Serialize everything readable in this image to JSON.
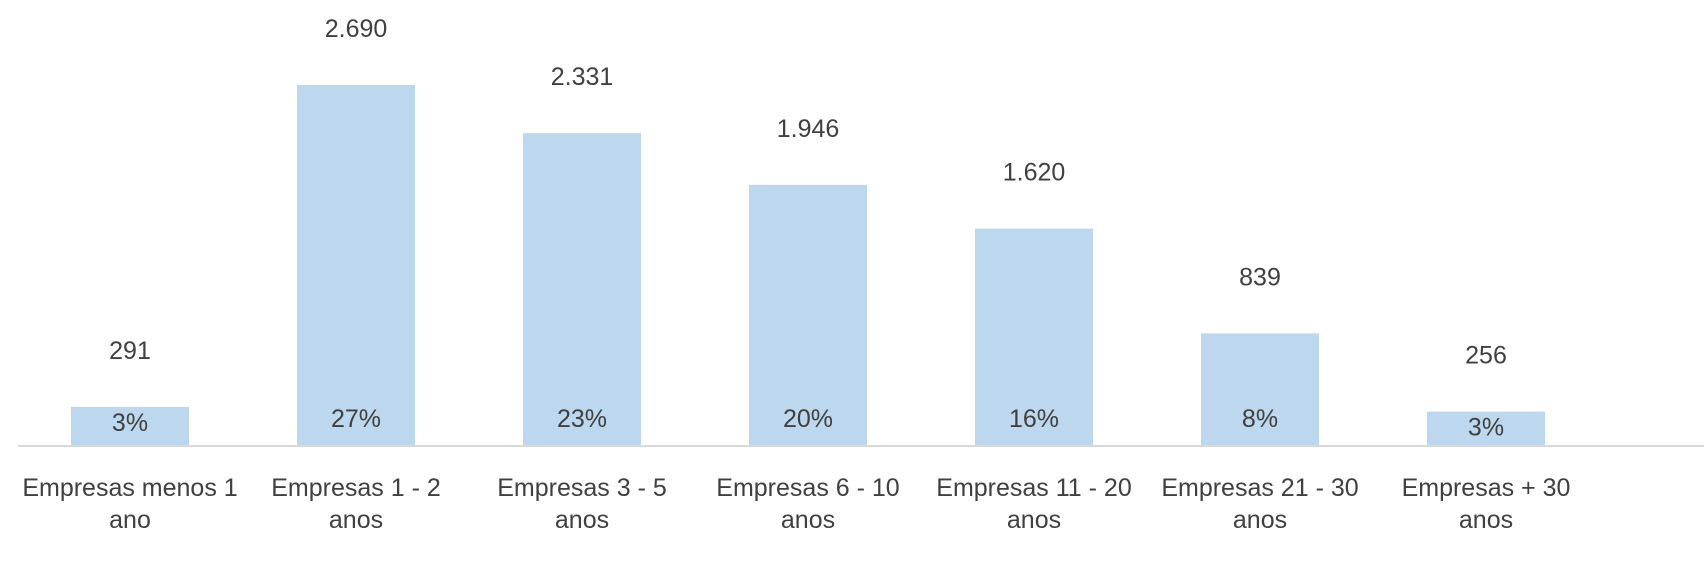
{
  "chart_data": {
    "type": "bar",
    "categories": [
      [
        "Empresas menos 1",
        "ano"
      ],
      [
        "Empresas 1 - 2",
        "anos"
      ],
      [
        "Empresas 3 - 5",
        "anos"
      ],
      [
        "Empresas 6 - 10",
        "anos"
      ],
      [
        "Empresas 11 - 20",
        "anos"
      ],
      [
        "Empresas 21 - 30",
        "anos"
      ],
      [
        "Empresas + 30",
        "anos"
      ]
    ],
    "values": [
      291,
      2690,
      2331,
      1946,
      1620,
      839,
      256
    ],
    "value_labels": [
      "291",
      "2.690",
      "2.331",
      "1.946",
      "1.620",
      "839",
      "256"
    ],
    "percent_labels": [
      "3%",
      "27%",
      "23%",
      "20%",
      "16%",
      "8%",
      "3%"
    ],
    "title": "",
    "xlabel": "",
    "ylabel": "",
    "ylim": [
      0,
      2690
    ],
    "grid": false,
    "legend": "none",
    "bar_color": "#bdd7ee",
    "axis_color": "#d9d9d9",
    "text_color": "#404040"
  }
}
